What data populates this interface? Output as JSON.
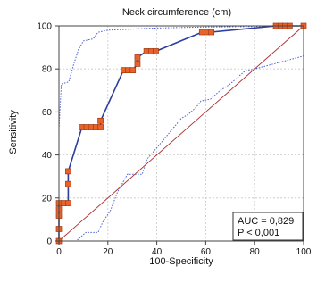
{
  "chart_data": {
    "type": "line",
    "title": "Neck circumference (cm)",
    "xlabel": "100-Specificity",
    "ylabel": "Sensitivity",
    "xlim": [
      0,
      100
    ],
    "ylim": [
      0,
      100
    ],
    "x_ticks": [
      0,
      20,
      40,
      60,
      80,
      100
    ],
    "y_ticks": [
      0,
      20,
      40,
      60,
      80,
      100
    ],
    "grid": true,
    "series": [
      {
        "role": "roc",
        "color": "#2c3e9e",
        "marker_color": "#e8622a",
        "points": [
          [
            0,
            0
          ],
          [
            0,
            5.6
          ],
          [
            0,
            11.8
          ],
          [
            0,
            14.7
          ],
          [
            0,
            17.6
          ],
          [
            1.9,
            17.6
          ],
          [
            3.8,
            17.6
          ],
          [
            3.8,
            26.5
          ],
          [
            3.8,
            32.4
          ],
          [
            9.4,
            52.9
          ],
          [
            11.3,
            52.9
          ],
          [
            13.2,
            52.9
          ],
          [
            15.1,
            52.9
          ],
          [
            17,
            52.9
          ],
          [
            17,
            55.9
          ],
          [
            26.4,
            79.4
          ],
          [
            28.3,
            79.4
          ],
          [
            30.2,
            79.4
          ],
          [
            32.1,
            82.4
          ],
          [
            32.1,
            85.3
          ],
          [
            35.8,
            88.2
          ],
          [
            37.7,
            88.2
          ],
          [
            39.6,
            88.2
          ],
          [
            58.5,
            97.1
          ],
          [
            60.4,
            97.1
          ],
          [
            62.3,
            97.1
          ],
          [
            88.7,
            100
          ],
          [
            90.6,
            100
          ],
          [
            92.5,
            100
          ],
          [
            94.3,
            100
          ],
          [
            100,
            100
          ]
        ]
      },
      {
        "role": "ci-upper",
        "color": "#4a5fd0",
        "dash": "dotted",
        "points": [
          [
            0,
            52
          ],
          [
            1,
            73
          ],
          [
            4,
            74
          ],
          [
            6,
            82
          ],
          [
            8,
            89
          ],
          [
            10,
            93
          ],
          [
            14,
            94
          ],
          [
            16,
            97
          ],
          [
            20,
            98
          ],
          [
            40,
            99
          ],
          [
            60,
            99.5
          ],
          [
            80,
            99.7
          ],
          [
            100,
            100
          ]
        ]
      },
      {
        "role": "ci-lower",
        "color": "#4a5fd0",
        "dash": "dotted",
        "points": [
          [
            0,
            0
          ],
          [
            7,
            0
          ],
          [
            11,
            4
          ],
          [
            16,
            4
          ],
          [
            18,
            9
          ],
          [
            21,
            14
          ],
          [
            24,
            23
          ],
          [
            28,
            31
          ],
          [
            34,
            31
          ],
          [
            36,
            38
          ],
          [
            42,
            46
          ],
          [
            50,
            57
          ],
          [
            53,
            59
          ],
          [
            56,
            62
          ],
          [
            58,
            65
          ],
          [
            62,
            66
          ],
          [
            66,
            70
          ],
          [
            70,
            73
          ],
          [
            76,
            79
          ],
          [
            80,
            80
          ],
          [
            90,
            83
          ],
          [
            100,
            86
          ]
        ]
      },
      {
        "role": "reference",
        "color": "#b03030",
        "points": [
          [
            0,
            0
          ],
          [
            100,
            100
          ]
        ]
      }
    ],
    "annotation": {
      "lines": [
        "AUC = 0,829",
        "P < 0,001"
      ],
      "placement": "bottom-right"
    }
  }
}
